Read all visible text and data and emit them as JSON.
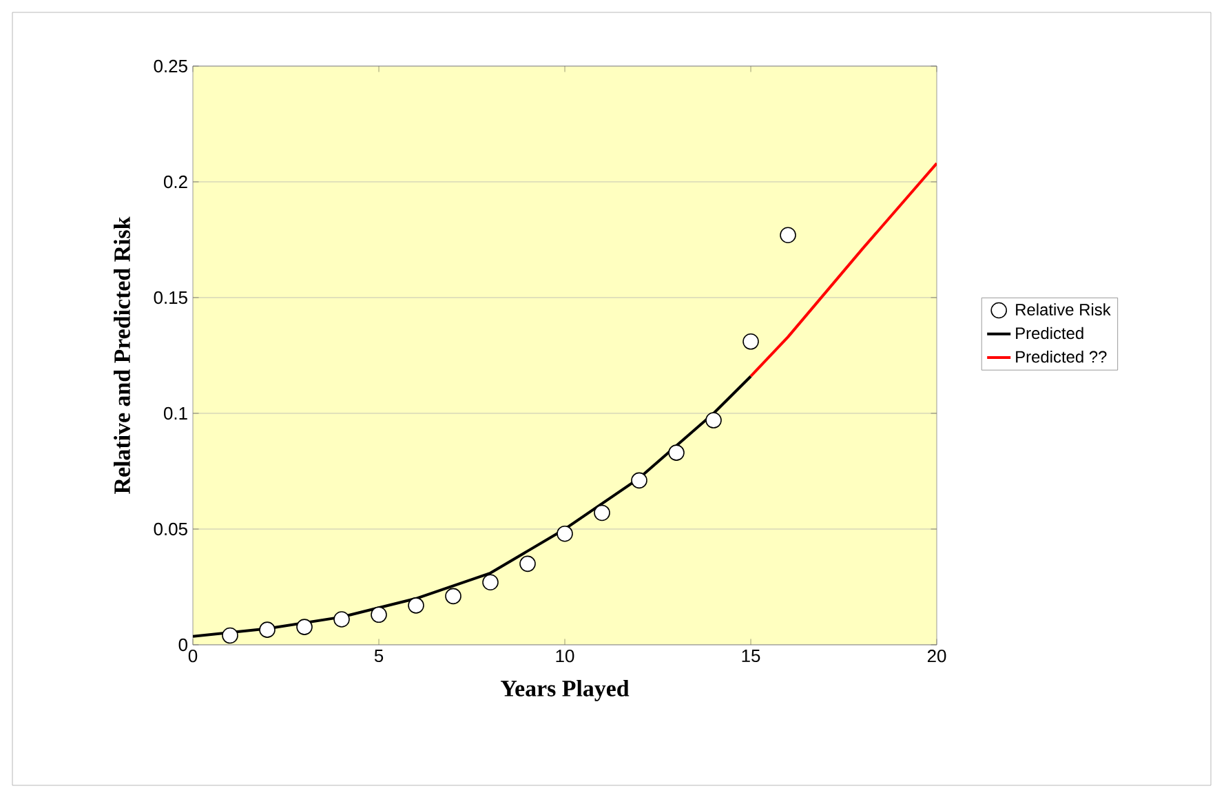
{
  "chart_data": {
    "type": "scatter",
    "xlabel": "Years Played",
    "ylabel": "Relative and Predicted Risk",
    "xlim": [
      0,
      20
    ],
    "ylim": [
      0,
      0.25
    ],
    "xticks": [
      0,
      5,
      10,
      15,
      20
    ],
    "yticks": [
      0,
      0.05,
      0.1,
      0.15,
      0.2,
      0.25
    ],
    "grid": "y",
    "legend": "right",
    "series": [
      {
        "name": "Relative Risk",
        "marker": "circle",
        "color": "#000000",
        "x": [
          1,
          2,
          3,
          4,
          5,
          6,
          7,
          8,
          9,
          10,
          11,
          12,
          13,
          14,
          15,
          16
        ],
        "values": [
          0.004,
          0.0065,
          0.0077,
          0.011,
          0.013,
          0.017,
          0.021,
          0.027,
          0.035,
          0.048,
          0.057,
          0.071,
          0.083,
          0.097,
          0.131,
          0.177
        ]
      },
      {
        "name": "Predicted",
        "type": "line",
        "line_style": "solid",
        "color": "#000000",
        "x": [
          0,
          2,
          4,
          6,
          8,
          10,
          12,
          14,
          15
        ],
        "values": [
          0.0036,
          0.007,
          0.012,
          0.02,
          0.031,
          0.05,
          0.072,
          0.1,
          0.116
        ]
      },
      {
        "name": "Predicted ??",
        "type": "line",
        "line_style": "solid",
        "color": "#ff0000",
        "x": [
          15,
          16,
          18,
          20
        ],
        "values": [
          0.116,
          0.133,
          0.171,
          0.208
        ]
      }
    ]
  }
}
